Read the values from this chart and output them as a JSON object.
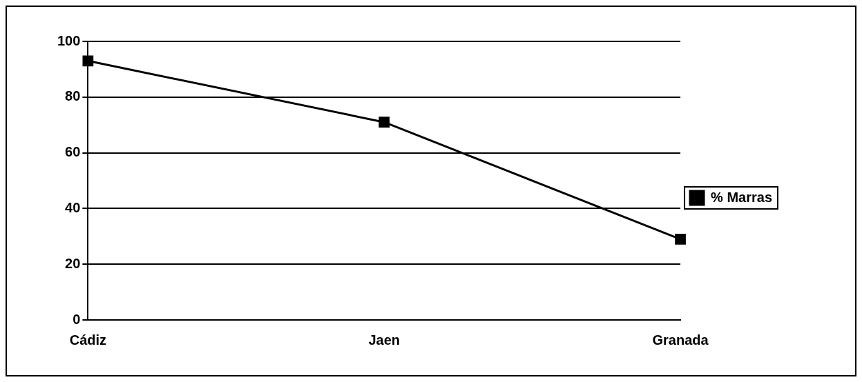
{
  "chart_data": {
    "type": "line",
    "categories": [
      "Cádiz",
      "Jaen",
      "Granada"
    ],
    "series": [
      {
        "name": "% Marras",
        "color": "#000000",
        "values": [
          93,
          71,
          29
        ]
      }
    ],
    "ylim": [
      0,
      100
    ],
    "yticks": [
      0,
      20,
      40,
      60,
      80,
      100
    ],
    "grid": "y",
    "legend": "right",
    "marker": "square",
    "line_style": "solid"
  }
}
